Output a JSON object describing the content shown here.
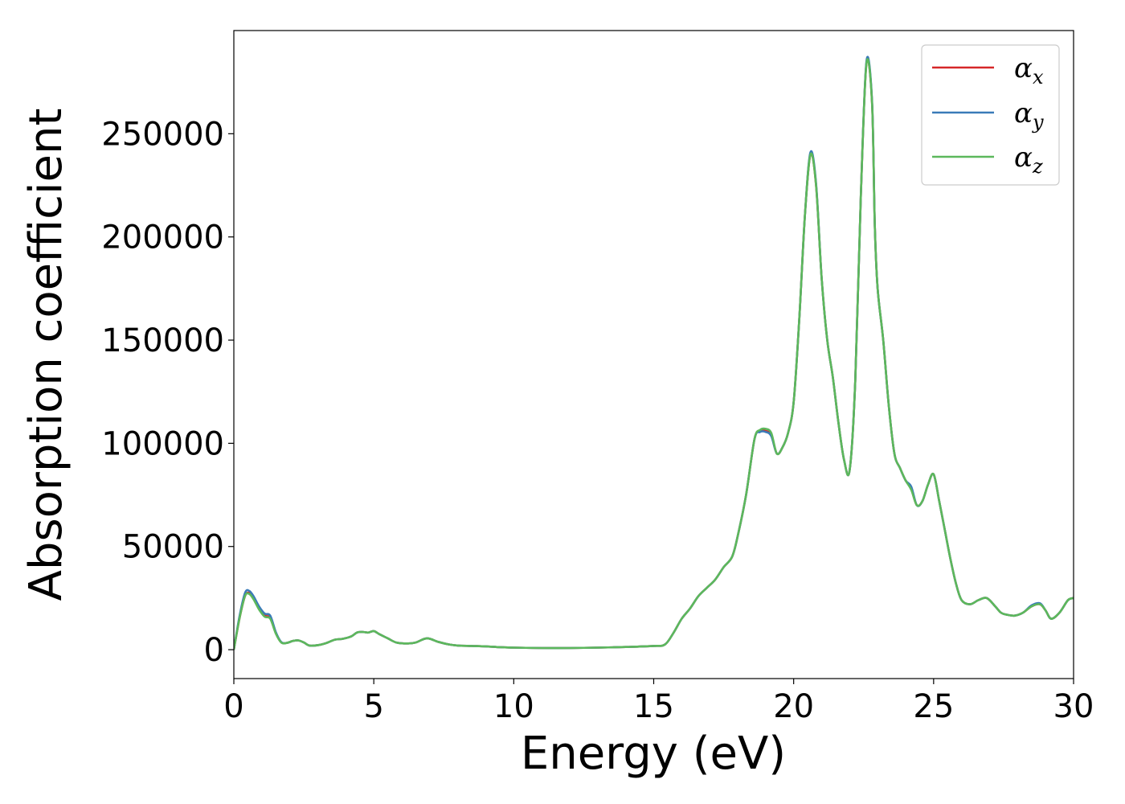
{
  "chart_data": {
    "type": "line",
    "xlabel": "Energy (eV)",
    "ylabel": "Absorption coefficient",
    "xlim": [
      0,
      30
    ],
    "ylim": [
      -14000,
      300000
    ],
    "x_ticks": [
      "0",
      "5",
      "10",
      "15",
      "20",
      "25",
      "30"
    ],
    "y_ticks": [
      "0",
      "50000",
      "100000",
      "150000",
      "200000",
      "250000"
    ],
    "x_tick_values": [
      0,
      5,
      10,
      15,
      20,
      25,
      30
    ],
    "y_tick_values": [
      0,
      50000,
      100000,
      150000,
      200000,
      250000
    ],
    "grid": false,
    "legend_placement": "upper-right",
    "series": [
      {
        "name": "α_x",
        "label_base": "α",
        "label_sub": "x",
        "color": "#d62728",
        "x": [
          0.0,
          0.2,
          0.4,
          0.55,
          0.7,
          0.9,
          1.1,
          1.3,
          1.5,
          1.7,
          1.9,
          2.1,
          2.3,
          2.5,
          2.7,
          3.0,
          3.3,
          3.6,
          3.9,
          4.2,
          4.4,
          4.6,
          4.8,
          5.0,
          5.2,
          5.5,
          5.8,
          6.2,
          6.5,
          6.9,
          7.3,
          7.7,
          8.0,
          8.5,
          9.0,
          9.5,
          10.0,
          11.0,
          12.0,
          13.0,
          14.0,
          15.0,
          15.4,
          15.7,
          16.0,
          16.3,
          16.6,
          16.9,
          17.2,
          17.5,
          17.8,
          18.0,
          18.3,
          18.6,
          18.8,
          19.0,
          19.2,
          19.4,
          19.6,
          19.8,
          20.0,
          20.2,
          20.4,
          20.6,
          20.8,
          21.0,
          21.2,
          21.4,
          21.6,
          21.8,
          22.0,
          22.2,
          22.4,
          22.6,
          22.8,
          22.9,
          23.0,
          23.2,
          23.4,
          23.6,
          23.8,
          24.0,
          24.2,
          24.4,
          24.6,
          24.8,
          25.0,
          25.2,
          25.4,
          25.6,
          25.8,
          26.0,
          26.3,
          26.6,
          26.9,
          27.2,
          27.4,
          27.6,
          27.9,
          28.2,
          28.5,
          28.8,
          29.0,
          29.2,
          29.5,
          29.8,
          30.0
        ],
        "values": [
          0,
          15000,
          26000,
          27500,
          25000,
          20000,
          16500,
          15500,
          8000,
          3500,
          3300,
          4200,
          4500,
          3500,
          2000,
          2200,
          3200,
          4800,
          5300,
          6500,
          8300,
          8600,
          8300,
          9000,
          7500,
          5500,
          3500,
          3000,
          3500,
          5500,
          3800,
          2500,
          2000,
          1800,
          1600,
          1200,
          1000,
          800,
          800,
          1000,
          1300,
          1800,
          2500,
          8000,
          15000,
          20000,
          26000,
          30000,
          34000,
          40000,
          45000,
          55000,
          75000,
          102000,
          106000,
          106000,
          104000,
          95000,
          98000,
          105000,
          120000,
          160000,
          210000,
          240000,
          225000,
          180000,
          150000,
          132000,
          110000,
          92000,
          87000,
          130000,
          220000,
          284000,
          265000,
          205000,
          175000,
          150000,
          118000,
          95000,
          88000,
          82000,
          78000,
          70000,
          72000,
          80000,
          85000,
          72000,
          58000,
          44000,
          32000,
          24000,
          22000,
          24000,
          25000,
          21000,
          18000,
          17000,
          16500,
          18000,
          21000,
          22000,
          19000,
          15000,
          18000,
          24000,
          25000
        ]
      },
      {
        "name": "α_y",
        "label_base": "α",
        "label_sub": "y",
        "color": "#3a7bb8",
        "x": [
          0.0,
          0.2,
          0.4,
          0.55,
          0.7,
          0.9,
          1.1,
          1.3,
          1.5,
          1.7,
          1.9,
          2.1,
          2.3,
          2.5,
          2.7,
          3.0,
          3.3,
          3.6,
          3.9,
          4.2,
          4.4,
          4.6,
          4.8,
          5.0,
          5.2,
          5.5,
          5.8,
          6.2,
          6.5,
          6.9,
          7.3,
          7.7,
          8.0,
          8.5,
          9.0,
          9.5,
          10.0,
          11.0,
          12.0,
          13.0,
          14.0,
          15.0,
          15.4,
          15.7,
          16.0,
          16.3,
          16.6,
          16.9,
          17.2,
          17.5,
          17.8,
          18.0,
          18.3,
          18.6,
          18.8,
          19.0,
          19.2,
          19.4,
          19.6,
          19.8,
          20.0,
          20.2,
          20.4,
          20.6,
          20.8,
          21.0,
          21.2,
          21.4,
          21.6,
          21.8,
          22.0,
          22.2,
          22.4,
          22.6,
          22.8,
          22.9,
          23.0,
          23.2,
          23.4,
          23.6,
          23.8,
          24.0,
          24.2,
          24.4,
          24.6,
          24.8,
          25.0,
          25.2,
          25.4,
          25.6,
          25.8,
          26.0,
          26.3,
          26.6,
          26.9,
          27.2,
          27.4,
          27.6,
          27.9,
          28.2,
          28.5,
          28.8,
          29.0,
          29.2,
          29.5,
          29.8,
          30.0
        ],
        "values": [
          0,
          16000,
          27500,
          28500,
          26000,
          21000,
          17500,
          16500,
          8500,
          3600,
          3300,
          4200,
          4500,
          3500,
          2000,
          2200,
          3200,
          4800,
          5300,
          6500,
          8300,
          8600,
          8300,
          9000,
          7500,
          5500,
          3500,
          3000,
          3500,
          5500,
          3800,
          2500,
          2000,
          1800,
          1600,
          1200,
          1000,
          800,
          800,
          1000,
          1300,
          1800,
          2500,
          8000,
          15000,
          20000,
          26000,
          30000,
          34000,
          40000,
          45000,
          55000,
          75000,
          102000,
          105500,
          105500,
          103500,
          95000,
          98000,
          105000,
          120000,
          160000,
          210000,
          241000,
          226000,
          180000,
          150000,
          132000,
          110000,
          92000,
          87000,
          130000,
          220000,
          285000,
          266000,
          205000,
          175000,
          150000,
          118000,
          95000,
          88000,
          82000,
          79000,
          70000,
          72000,
          80000,
          85000,
          72000,
          58000,
          44000,
          32000,
          24000,
          22000,
          24000,
          25000,
          21000,
          18000,
          17000,
          16500,
          18000,
          21500,
          22500,
          19000,
          15000,
          18000,
          24000,
          25000
        ]
      },
      {
        "name": "α_z",
        "label_base": "α",
        "label_sub": "z",
        "color": "#5cb85c",
        "x": [
          0.0,
          0.2,
          0.4,
          0.55,
          0.7,
          0.9,
          1.1,
          1.3,
          1.5,
          1.7,
          1.9,
          2.1,
          2.3,
          2.5,
          2.7,
          3.0,
          3.3,
          3.6,
          3.9,
          4.2,
          4.4,
          4.6,
          4.8,
          5.0,
          5.2,
          5.5,
          5.8,
          6.2,
          6.5,
          6.9,
          7.3,
          7.7,
          8.0,
          8.5,
          9.0,
          9.5,
          10.0,
          11.0,
          12.0,
          13.0,
          14.0,
          15.0,
          15.4,
          15.7,
          16.0,
          16.3,
          16.6,
          16.9,
          17.2,
          17.5,
          17.8,
          18.0,
          18.3,
          18.6,
          18.8,
          19.0,
          19.2,
          19.4,
          19.6,
          19.8,
          20.0,
          20.2,
          20.4,
          20.6,
          20.8,
          21.0,
          21.2,
          21.4,
          21.6,
          21.8,
          22.0,
          22.2,
          22.4,
          22.6,
          22.8,
          22.9,
          23.0,
          23.2,
          23.4,
          23.6,
          23.8,
          24.0,
          24.2,
          24.4,
          24.6,
          24.8,
          25.0,
          25.2,
          25.4,
          25.6,
          25.8,
          26.0,
          26.3,
          26.6,
          26.9,
          27.2,
          27.4,
          27.6,
          27.9,
          28.2,
          28.5,
          28.8,
          29.0,
          29.2,
          29.5,
          29.8,
          30.0
        ],
        "values": [
          0,
          15000,
          26000,
          27000,
          24500,
          19500,
          16000,
          15000,
          7800,
          3400,
          3300,
          4200,
          4500,
          3500,
          2000,
          2200,
          3200,
          4800,
          5300,
          6500,
          8300,
          8600,
          8300,
          9000,
          7500,
          5500,
          3500,
          3000,
          3500,
          5500,
          3800,
          2500,
          2000,
          1800,
          1600,
          1200,
          1000,
          800,
          800,
          1000,
          1300,
          1800,
          2500,
          8000,
          15000,
          20000,
          26000,
          30000,
          34000,
          40000,
          45000,
          55000,
          75000,
          102000,
          106500,
          107000,
          105000,
          95000,
          98000,
          105000,
          120000,
          160000,
          210000,
          240000,
          225000,
          180000,
          150000,
          132000,
          110000,
          92000,
          87000,
          130000,
          220000,
          284000,
          265000,
          205000,
          175000,
          150000,
          118000,
          95000,
          88000,
          82000,
          77500,
          70000,
          72000,
          80000,
          85000,
          72000,
          58000,
          44000,
          32000,
          24000,
          22000,
          24000,
          25000,
          21000,
          18000,
          17000,
          16500,
          18000,
          21000,
          22000,
          19000,
          15000,
          18000,
          24000,
          25000
        ]
      }
    ]
  }
}
